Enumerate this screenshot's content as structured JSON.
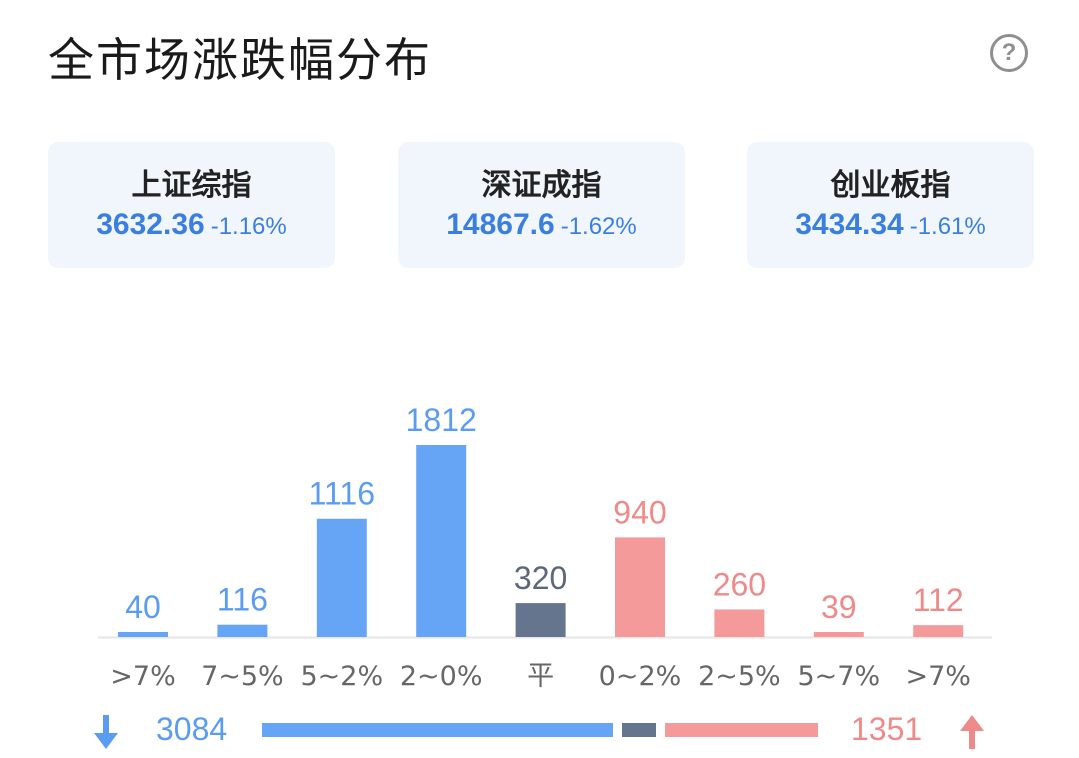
{
  "header": {
    "title": "全市场涨跌幅分布",
    "help_icon": "question-circle-icon",
    "help_glyph": "?"
  },
  "indices": [
    {
      "name": "上证综指",
      "value": "3632.36",
      "change": "-1.16%"
    },
    {
      "name": "深证成指",
      "value": "14867.6",
      "change": "-1.62%"
    },
    {
      "name": "创业板指",
      "value": "3434.34",
      "change": "-1.61%"
    }
  ],
  "colors": {
    "down": "#66a4f6",
    "flat": "#65758e",
    "up": "#f49a9a",
    "down_text": "#5a9cf0",
    "flat_text": "#5c677a",
    "up_text": "#ef8a8a",
    "axis_text": "#666666"
  },
  "chart_data": {
    "type": "bar",
    "categories": [
      ">7%",
      "7~5%",
      "5~2%",
      "2~0%",
      "平",
      "0~2%",
      "2~5%",
      "5~7%",
      ">7%"
    ],
    "values": [
      40,
      116,
      1116,
      1812,
      320,
      940,
      260,
      39,
      112
    ],
    "groups": [
      "down",
      "down",
      "down",
      "down",
      "flat",
      "up",
      "up",
      "up",
      "up"
    ],
    "ylim": [
      0,
      1812
    ]
  },
  "summary": {
    "down_icon": "arrow-down-icon",
    "up_icon": "arrow-up-icon",
    "down_count": "3084",
    "up_count": "1351"
  }
}
